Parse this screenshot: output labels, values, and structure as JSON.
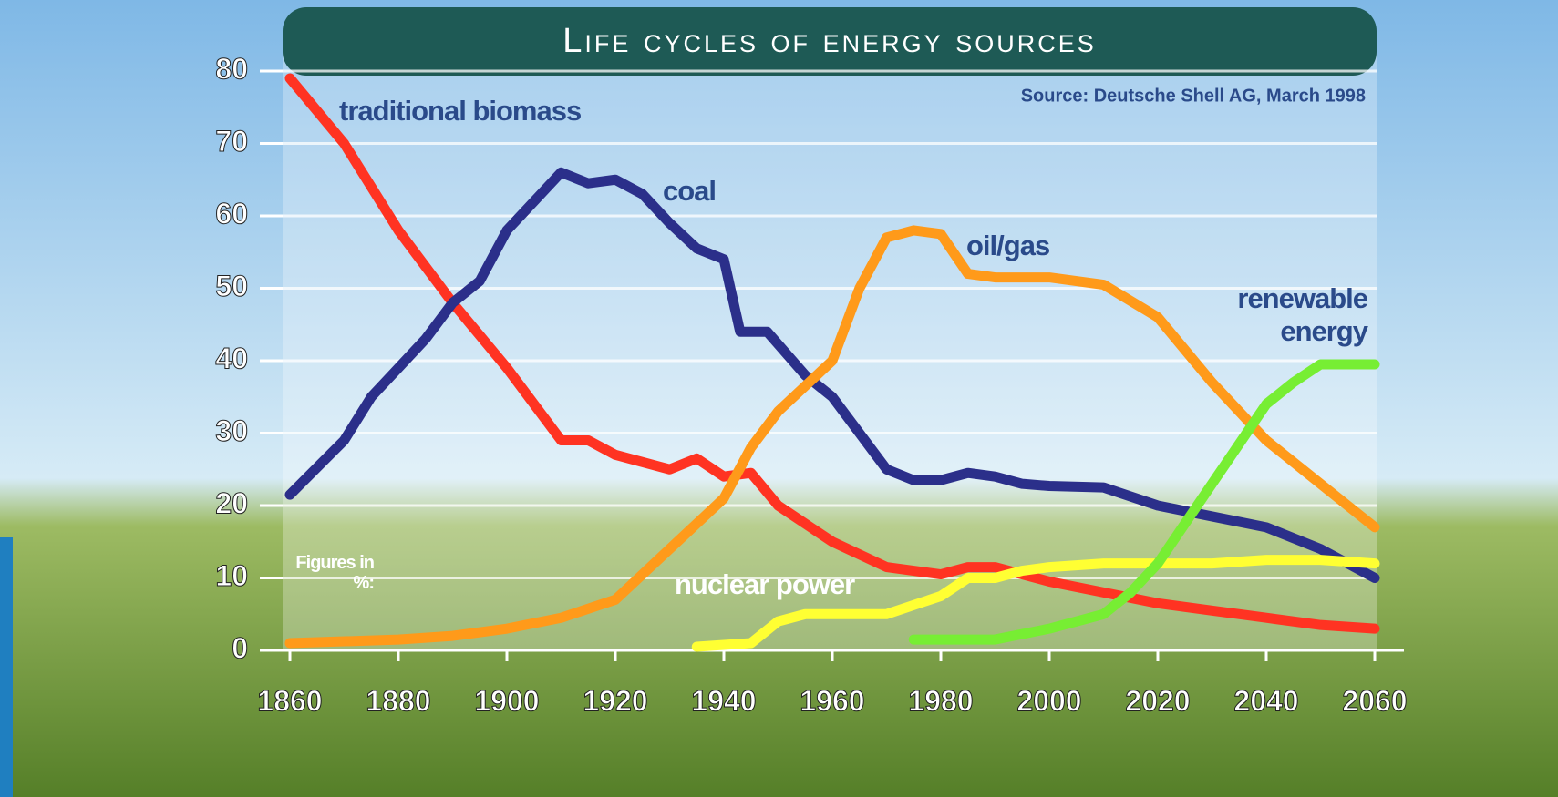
{
  "chart_data": {
    "type": "line",
    "title": "Life cycles of energy sources",
    "source": "Source: Deutsche Shell AG, March 1998",
    "annotation": "Figures in %:",
    "xlim": [
      1860,
      2060
    ],
    "xticks": [
      1860,
      1880,
      1900,
      1920,
      1940,
      1960,
      1980,
      2000,
      2020,
      2040,
      2060
    ],
    "ylim": [
      0,
      80
    ],
    "yticks": [
      0,
      10,
      20,
      30,
      40,
      50,
      60,
      70,
      80
    ],
    "grid": true,
    "series": [
      {
        "name": "traditional biomass",
        "color": "#ff3322",
        "x": [
          1860,
          1870,
          1880,
          1890,
          1900,
          1910,
          1915,
          1920,
          1930,
          1935,
          1940,
          1945,
          1950,
          1960,
          1970,
          1980,
          1985,
          1990,
          2000,
          2010,
          2020,
          2030,
          2040,
          2050,
          2060
        ],
        "values": [
          79,
          70,
          58,
          48,
          39,
          29,
          29,
          27,
          25,
          26.5,
          24,
          24.5,
          20,
          15,
          11.5,
          10.5,
          11.5,
          11.5,
          9.5,
          8,
          6.5,
          5.5,
          4.5,
          3.5,
          3
        ]
      },
      {
        "name": "coal",
        "color": "#2b2f8a",
        "x": [
          1860,
          1870,
          1875,
          1880,
          1885,
          1890,
          1895,
          1900,
          1905,
          1910,
          1915,
          1920,
          1925,
          1930,
          1935,
          1940,
          1943,
          1948,
          1955,
          1960,
          1965,
          1970,
          1975,
          1980,
          1985,
          1990,
          1995,
          2000,
          2010,
          2020,
          2030,
          2040,
          2050,
          2060
        ],
        "values": [
          21.5,
          29,
          35,
          39,
          43,
          48,
          51,
          58,
          62,
          66,
          64.5,
          65,
          63,
          59,
          55.5,
          54,
          44,
          44,
          38,
          35,
          30,
          25,
          23.5,
          23.5,
          24.5,
          24,
          23,
          22.7,
          22.5,
          20,
          18.5,
          17,
          14,
          10
        ]
      },
      {
        "name": "oil/gas",
        "color": "#ff9a1a",
        "x": [
          1860,
          1880,
          1890,
          1900,
          1910,
          1920,
          1930,
          1940,
          1945,
          1950,
          1960,
          1965,
          1970,
          1975,
          1980,
          1985,
          1990,
          2000,
          2010,
          2020,
          2030,
          2040,
          2050,
          2060
        ],
        "values": [
          1,
          1.5,
          2,
          3,
          4.5,
          7,
          14,
          21,
          28,
          33,
          40,
          50,
          57,
          58,
          57.5,
          52,
          51.5,
          51.5,
          50.5,
          46,
          37,
          29,
          23,
          17
        ]
      },
      {
        "name": "nuclear power",
        "color": "#ffff33",
        "x": [
          1935,
          1945,
          1950,
          1955,
          1960,
          1970,
          1980,
          1985,
          1990,
          1995,
          2000,
          2010,
          2020,
          2030,
          2040,
          2050,
          2060
        ],
        "values": [
          0.5,
          1,
          4,
          5,
          5,
          5,
          7.5,
          10,
          10,
          11,
          11.5,
          12,
          12,
          12,
          12.5,
          12.5,
          12
        ]
      },
      {
        "name": "renewable energy",
        "color": "#77ee33",
        "x": [
          1975,
          1990,
          2000,
          2010,
          2015,
          2020,
          2030,
          2040,
          2045,
          2050,
          2060
        ],
        "values": [
          1.5,
          1.5,
          3,
          5,
          8,
          12,
          23,
          34,
          37,
          39.5,
          39.5
        ]
      }
    ]
  }
}
